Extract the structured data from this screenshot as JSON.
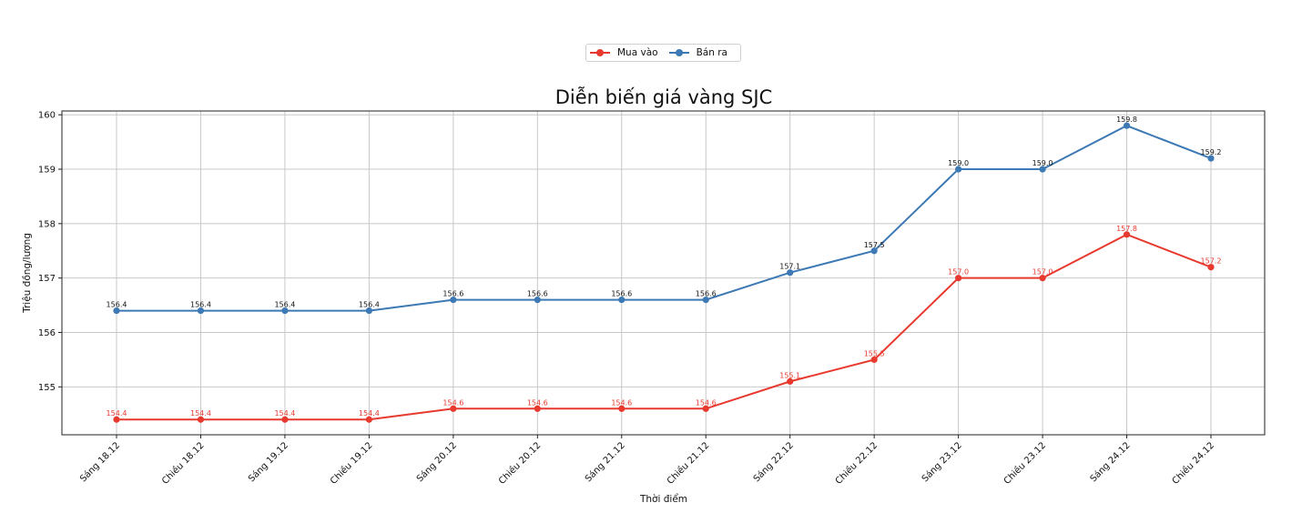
{
  "legend": {
    "items": [
      {
        "label": "Mua vào",
        "color": "#e8392e"
      },
      {
        "label": "Bán ra",
        "color": "#3d79b4"
      }
    ]
  },
  "chart_data": {
    "type": "line",
    "title": "Diễn biến giá vàng SJC",
    "xlabel": "Thời điểm",
    "ylabel": "Triệu đồng/lượng",
    "categories": [
      "Sáng 18.12",
      "Chiều 18.12",
      "Sáng 19.12",
      "Chiều 19.12",
      "Sáng 20.12",
      "Chiều 20.12",
      "Sáng 21.12",
      "Chiều 21.12",
      "Sáng 22.12",
      "Chiều 22.12",
      "Sáng 23.12",
      "Chiều 23.12",
      "Sáng 24.12",
      "Chiều 24.12"
    ],
    "series": [
      {
        "name": "Mua vào",
        "color": "#e8392e",
        "values": [
          154.4,
          154.4,
          154.4,
          154.4,
          154.6,
          154.6,
          154.6,
          154.6,
          155.1,
          155.5,
          157.0,
          157.0,
          157.8,
          157.2
        ]
      },
      {
        "name": "Bán ra",
        "color": "#3d79b4",
        "values": [
          156.4,
          156.4,
          156.4,
          156.4,
          156.6,
          156.6,
          156.6,
          156.6,
          157.1,
          157.5,
          159.0,
          159.0,
          159.8,
          159.2
        ]
      }
    ],
    "yticks": [
      155,
      156,
      157,
      158,
      159,
      160
    ],
    "ylim": [
      154.12,
      160.07
    ],
    "grid": true,
    "legend_position": "upper center, above title"
  }
}
